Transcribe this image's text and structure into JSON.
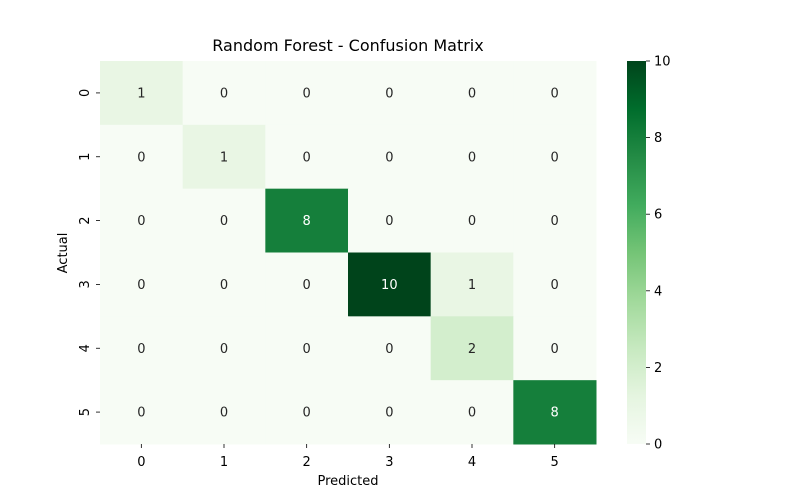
{
  "chart_data": {
    "type": "heatmap",
    "title": "Random Forest - Confusion Matrix",
    "xlabel": "Predicted",
    "ylabel": "Actual",
    "x_categories": [
      "0",
      "1",
      "2",
      "3",
      "4",
      "5"
    ],
    "y_categories": [
      "0",
      "1",
      "2",
      "3",
      "4",
      "5"
    ],
    "values": [
      [
        1,
        0,
        0,
        0,
        0,
        0
      ],
      [
        0,
        1,
        0,
        0,
        0,
        0
      ],
      [
        0,
        0,
        8,
        0,
        0,
        0
      ],
      [
        0,
        0,
        0,
        10,
        1,
        0
      ],
      [
        0,
        0,
        0,
        0,
        2,
        0
      ],
      [
        0,
        0,
        0,
        0,
        0,
        8
      ]
    ],
    "colormap": "Greens",
    "colorbar": {
      "range": [
        0,
        10
      ],
      "ticks": [
        "0",
        "2",
        "4",
        "6",
        "8",
        "10"
      ]
    },
    "grid": false
  }
}
